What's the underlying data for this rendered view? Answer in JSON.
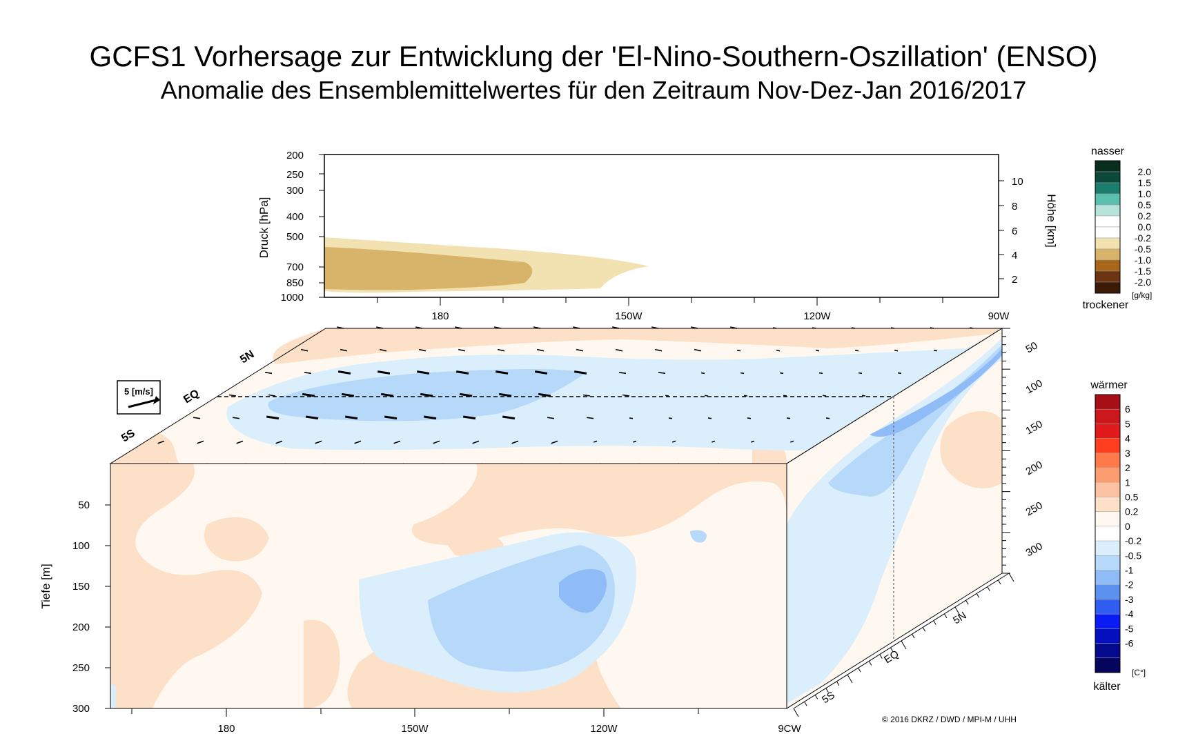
{
  "title": "GCFS1 Vorhersage zur Entwicklung der 'El-Nino-Southern-Oszillation' (ENSO)",
  "subtitle": "Anomalie des Ensemblemittelwertes für den Zeitraum Nov-Dez-Jan 2016/2017",
  "copyright": "© 2016 DKRZ / DWD / MPI-M / UHH",
  "chart_data": [
    {
      "type": "heatmap",
      "name": "atmosphere-humidity-section",
      "ylabel_left": "Druck [hPa]",
      "ylabel_right": "Höhe [km]",
      "y_ticks_left": [
        "200",
        "250",
        "300",
        "400",
        "500",
        "700",
        "850",
        "1000"
      ],
      "y_ticks_right": [
        "10",
        "8",
        "6",
        "4",
        "2"
      ],
      "x_ticks": [
        "180",
        "150W",
        "120W",
        "90W"
      ],
      "regions": [
        {
          "class": "-0.5 to -0.2",
          "lon_range": [
            "170E",
            "145W"
          ],
          "pressure_range": [
            540,
            1000
          ]
        },
        {
          "class": "-1.0 to -0.5",
          "lon_range": [
            "170E",
            "160W"
          ],
          "pressure_range": [
            650,
            880
          ]
        }
      ],
      "colorbar": {
        "top_label": "nasser",
        "bottom_label": "trockener",
        "unit": "[g/kg]",
        "labels": [
          "2.0",
          "1.5",
          "1.0",
          "0.5",
          "0.2",
          "0.0",
          "-0.2",
          "-0.5",
          "-1.0",
          "-1.5",
          "-2.0"
        ],
        "colors": [
          "#0a2e1e",
          "#0b4a3a",
          "#1a7d6d",
          "#5bbfae",
          "#b7e5dc",
          "#ffffff",
          "#ffffff",
          "#f2e2b2",
          "#d8b36a",
          "#a8661a",
          "#6a3510",
          "#3b1a08"
        ]
      }
    },
    {
      "type": "heatmap",
      "name": "ocean-temperature-section",
      "ylabel": "Tiefe [m]",
      "y_ticks": [
        "50",
        "100",
        "150",
        "200",
        "250",
        "300"
      ],
      "x_ticks": [
        "180",
        "150W",
        "120W",
        "9CW"
      ],
      "side_depth_ticks": [
        "50",
        "100",
        "150",
        "200",
        "250",
        "300"
      ],
      "lat_ticks": [
        "5N",
        "EQ",
        "5S"
      ],
      "surface_lat_labels": [
        "5N",
        "EQ",
        "5S"
      ],
      "wind_scale_label": "5 [m/s]",
      "regions": [
        {
          "class": "-1 to -0.5",
          "lon_range": [
            "150W",
            "125W"
          ],
          "depth_range": [
            120,
            240
          ]
        },
        {
          "class": "-2 to -1",
          "lon_range": [
            "130W",
            "121W"
          ],
          "depth_range": [
            125,
            170
          ]
        },
        {
          "class": "0.2 to 0.5",
          "lon_range": [
            "170E",
            "90W"
          ],
          "depth_range": [
            0,
            300
          ]
        }
      ],
      "colorbar": {
        "top_label": "wärmer",
        "bottom_label": "kälter",
        "unit": "[C°]",
        "labels": [
          "6",
          "5",
          "4",
          "3",
          "2",
          "1",
          "0.5",
          "0.2",
          "0",
          "-0.2",
          "-0.5",
          "-1",
          "-2",
          "-3",
          "-4",
          "-5",
          "-6"
        ],
        "colors": [
          "#a50f15",
          "#cb181d",
          "#e31a1c",
          "#ff3d1f",
          "#ff7a4a",
          "#fc9d70",
          "#fcc3a2",
          "#fde0c8",
          "#fff8f0",
          "#ffffff",
          "#dbeefc",
          "#b6d8f9",
          "#8fbcf7",
          "#5d91f0",
          "#2f5ef0",
          "#0a1cf5",
          "#0410c0",
          "#030a8c",
          "#06055e"
        ]
      }
    }
  ]
}
